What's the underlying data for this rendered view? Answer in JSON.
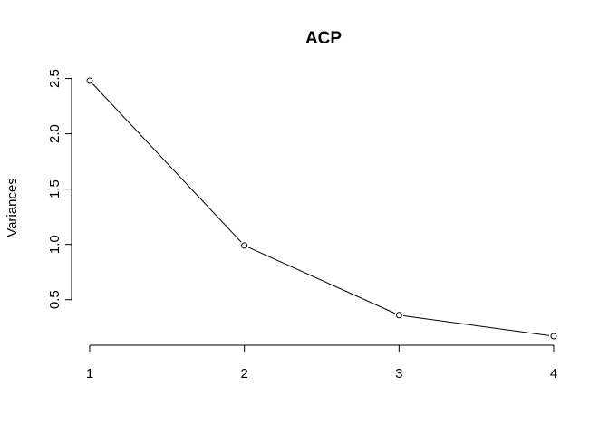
{
  "chart_data": {
    "type": "line",
    "title": "ACP",
    "xlabel": "",
    "ylabel": "Variances",
    "x": [
      1,
      2,
      3,
      4
    ],
    "x_ticks": [
      "1",
      "2",
      "3",
      "4"
    ],
    "y_ticks": [
      "0.5",
      "1.0",
      "1.5",
      "2.0",
      "2.5"
    ],
    "series": [
      {
        "values": [
          2.48,
          0.99,
          0.36,
          0.17
        ]
      }
    ],
    "xlim": [
      1,
      4
    ],
    "ylim": [
      0.17,
      2.48
    ],
    "grid": false,
    "legend": "none",
    "point_style": "open-circle",
    "color": "#000000"
  }
}
